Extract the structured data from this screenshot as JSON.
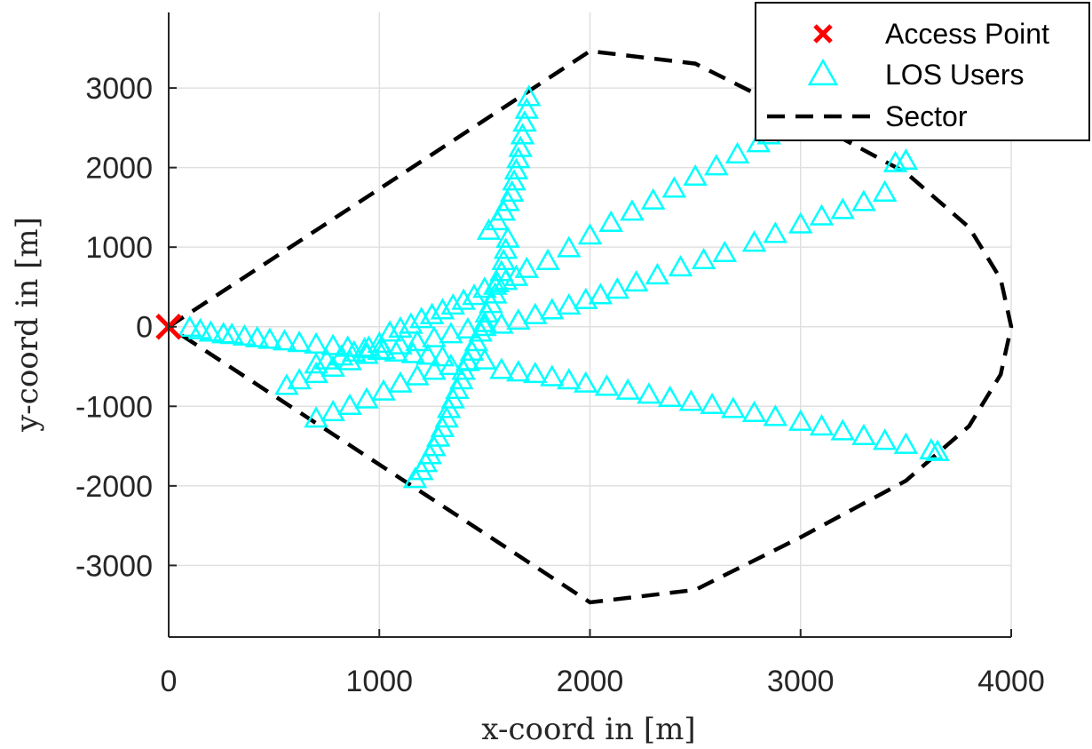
{
  "chart_data": {
    "type": "scatter",
    "title": "",
    "xlabel": "x-coord in [m]",
    "ylabel": "y-coord in [m]",
    "xlim": [
      0,
      4000
    ],
    "ylim": [
      -3900,
      3950
    ],
    "xticks": [
      0,
      1000,
      2000,
      3000,
      4000
    ],
    "yticks": [
      -3000,
      -2000,
      -1000,
      0,
      1000,
      2000,
      3000
    ],
    "xtick_labels": [
      "0",
      "1000",
      "2000",
      "3000",
      "4000"
    ],
    "ytick_labels": [
      "-3000",
      "-2000",
      "-1000",
      "0",
      "1000",
      "2000",
      "3000"
    ],
    "grid": true,
    "legend_position": "top-right",
    "colors": {
      "access_point": "#ff0000",
      "users": "#00ffff",
      "sector": "#000000",
      "grid": "#e0e0e0",
      "axes": "#262626"
    },
    "series": [
      {
        "name": "Access Point",
        "marker": "x",
        "points": [
          [
            0,
            0
          ]
        ]
      },
      {
        "name": "LOS Users",
        "marker": "triangle",
        "points": [
          [
            100,
            -20
          ],
          [
            150,
            -50
          ],
          [
            200,
            -80
          ],
          [
            260,
            -100
          ],
          [
            300,
            -110
          ],
          [
            360,
            -130
          ],
          [
            420,
            -150
          ],
          [
            480,
            -170
          ],
          [
            550,
            -190
          ],
          [
            620,
            -210
          ],
          [
            700,
            -230
          ],
          [
            780,
            -250
          ],
          [
            850,
            -270
          ],
          [
            930,
            -290
          ],
          [
            1000,
            -310
          ],
          [
            1080,
            -330
          ],
          [
            1160,
            -350
          ],
          [
            1230,
            -370
          ],
          [
            1300,
            -390
          ],
          [
            700,
            -480
          ],
          [
            750,
            -430
          ],
          [
            820,
            -380
          ],
          [
            880,
            -330
          ],
          [
            950,
            -270
          ],
          [
            1000,
            -220
          ],
          [
            1050,
            -80
          ],
          [
            1100,
            -30
          ],
          [
            1150,
            20
          ],
          [
            1200,
            90
          ],
          [
            1250,
            140
          ],
          [
            1300,
            200
          ],
          [
            1350,
            260
          ],
          [
            1400,
            320
          ],
          [
            1450,
            380
          ],
          [
            1500,
            470
          ],
          [
            1550,
            510
          ],
          [
            1600,
            570
          ],
          [
            1650,
            620
          ],
          [
            1700,
            720
          ],
          [
            1800,
            820
          ],
          [
            1900,
            980
          ],
          [
            2000,
            1140
          ],
          [
            2100,
            1300
          ],
          [
            2200,
            1440
          ],
          [
            2300,
            1580
          ],
          [
            2400,
            1730
          ],
          [
            2500,
            1880
          ],
          [
            2600,
            2010
          ],
          [
            2700,
            2160
          ],
          [
            2800,
            2300
          ],
          [
            2850,
            2400
          ],
          [
            560,
            -750
          ],
          [
            620,
            -680
          ],
          [
            700,
            -600
          ],
          [
            780,
            -520
          ],
          [
            860,
            -440
          ],
          [
            940,
            -360
          ],
          [
            1020,
            -300
          ],
          [
            1100,
            -240
          ],
          [
            1180,
            -200
          ],
          [
            1260,
            -150
          ],
          [
            1340,
            -100
          ],
          [
            1420,
            -40
          ],
          [
            1500,
            -10
          ],
          [
            1580,
            20
          ],
          [
            1660,
            70
          ],
          [
            1740,
            140
          ],
          [
            1820,
            200
          ],
          [
            1900,
            260
          ],
          [
            1980,
            330
          ],
          [
            2050,
            390
          ],
          [
            2130,
            460
          ],
          [
            2220,
            550
          ],
          [
            2320,
            640
          ],
          [
            2430,
            740
          ],
          [
            2540,
            830
          ],
          [
            2640,
            920
          ],
          [
            2780,
            1050
          ],
          [
            2880,
            1160
          ],
          [
            3000,
            1280
          ],
          [
            3100,
            1380
          ],
          [
            3200,
            1460
          ],
          [
            3300,
            1560
          ],
          [
            3400,
            1680
          ],
          [
            3450,
            2050
          ],
          [
            3500,
            2080
          ],
          [
            700,
            -1160
          ],
          [
            780,
            -1080
          ],
          [
            860,
            -1000
          ],
          [
            940,
            -920
          ],
          [
            1020,
            -820
          ],
          [
            1100,
            -720
          ],
          [
            1180,
            -630
          ],
          [
            1260,
            -560
          ],
          [
            1340,
            -500
          ],
          [
            1420,
            -450
          ],
          [
            1500,
            -430
          ],
          [
            1580,
            -550
          ],
          [
            1660,
            -580
          ],
          [
            1740,
            -600
          ],
          [
            1820,
            -640
          ],
          [
            1900,
            -680
          ],
          [
            1980,
            -720
          ],
          [
            2080,
            -760
          ],
          [
            2180,
            -810
          ],
          [
            2280,
            -860
          ],
          [
            2380,
            -900
          ],
          [
            2480,
            -950
          ],
          [
            2580,
            -990
          ],
          [
            2680,
            -1040
          ],
          [
            2780,
            -1090
          ],
          [
            2880,
            -1140
          ],
          [
            3000,
            -1200
          ],
          [
            3100,
            -1260
          ],
          [
            3200,
            -1320
          ],
          [
            3300,
            -1380
          ],
          [
            3400,
            -1440
          ],
          [
            3500,
            -1490
          ],
          [
            3620,
            -1560
          ],
          [
            3650,
            -1580
          ],
          [
            1170,
            -1920
          ],
          [
            1200,
            -1820
          ],
          [
            1220,
            -1720
          ],
          [
            1240,
            -1620
          ],
          [
            1260,
            -1520
          ],
          [
            1280,
            -1400
          ],
          [
            1300,
            -1280
          ],
          [
            1320,
            -1160
          ],
          [
            1330,
            -1040
          ],
          [
            1350,
            -920
          ],
          [
            1370,
            -800
          ],
          [
            1390,
            -680
          ],
          [
            1400,
            -560
          ],
          [
            1420,
            -440
          ],
          [
            1440,
            -320
          ],
          [
            1460,
            -200
          ],
          [
            1480,
            -80
          ],
          [
            1500,
            40
          ],
          [
            1510,
            160
          ],
          [
            1530,
            280
          ],
          [
            1550,
            400
          ],
          [
            1560,
            540
          ],
          [
            1580,
            680
          ],
          [
            1590,
            820
          ],
          [
            1600,
            960
          ],
          [
            1610,
            1100
          ],
          [
            1520,
            1200
          ],
          [
            1560,
            1320
          ],
          [
            1590,
            1440
          ],
          [
            1610,
            1560
          ],
          [
            1630,
            1680
          ],
          [
            1640,
            1820
          ],
          [
            1650,
            1960
          ],
          [
            1660,
            2100
          ],
          [
            1670,
            2240
          ],
          [
            1680,
            2400
          ],
          [
            1690,
            2560
          ],
          [
            1700,
            2720
          ],
          [
            1710,
            2880
          ]
        ]
      },
      {
        "name": "Sector",
        "line": "dashed",
        "points": [
          [
            0,
            0
          ],
          [
            2000,
            3464
          ],
          [
            2500,
            3307
          ],
          [
            3000,
            2646
          ],
          [
            3500,
            1936
          ],
          [
            3800,
            1249
          ],
          [
            3950,
            600
          ],
          [
            4000,
            0
          ],
          [
            3950,
            -600
          ],
          [
            3800,
            -1249
          ],
          [
            3500,
            -1936
          ],
          [
            3000,
            -2646
          ],
          [
            2500,
            -3307
          ],
          [
            2000,
            -3464
          ],
          [
            0,
            0
          ]
        ]
      }
    ]
  }
}
